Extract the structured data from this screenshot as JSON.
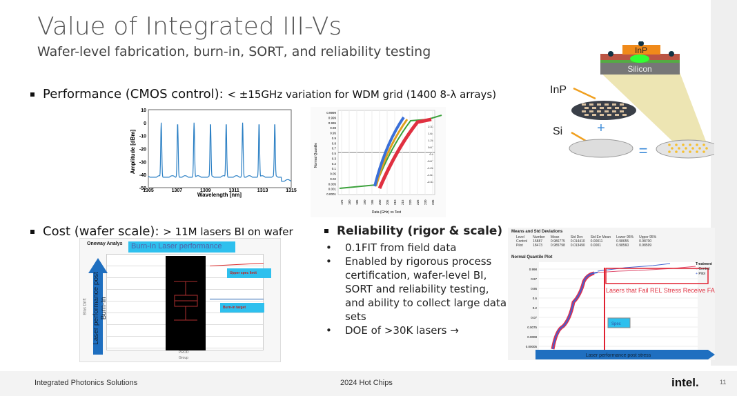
{
  "title": "Value of Integrated III-Vs",
  "subtitle": "Wafer-level fabrication, burn-in, SORT, and reliability testing",
  "bullets": {
    "performance": {
      "label": "Performance (CMOS control):",
      "text": "< ±15GHz variation for WDM grid (1400 8-λ arrays)"
    },
    "cost": {
      "label": "Cost (wafer scale):",
      "text": "> 11M lasers BI on wafer"
    }
  },
  "reliability": {
    "heading": "Reliability (rigor & scale)",
    "items": [
      "0.1FIT from field data",
      "Enabled by rigorous process certification, wafer-level BI, SORT and reliability testing, and ability to collect large data sets",
      "DOE of >30K lasers →"
    ]
  },
  "spectrum": {
    "ylabel": "Amplitude [dBm]",
    "xlabel": "Wavelength [nm]",
    "yticks": [
      "10",
      "0",
      "-10",
      "-20",
      "-30",
      "-40",
      "-50"
    ],
    "xticks": [
      "1305",
      "1307",
      "1309",
      "1311",
      "1313",
      "1315"
    ],
    "peaks_nm": [
      1305.9,
      1307.05,
      1308.2,
      1309.35,
      1310.45,
      1311.6,
      1312.75,
      1313.85
    ],
    "color": "#2a7fc4"
  },
  "quantile": {
    "ylabel": "Normal Quantile",
    "xlabel": "Data (GHz) vs Test",
    "yticks": [
      "0.9999",
      "0.999",
      "0.995",
      "0.98",
      "0.95",
      "0.9",
      "0.8",
      "0.7",
      "0.5",
      "0.3",
      "0.2",
      "0.1",
      "0.05",
      "0.02",
      "0.005",
      "0.001",
      "0.0001"
    ],
    "rticks": [
      "2.33",
      "1.64",
      "1.28",
      "0.67",
      "0.0",
      "-0.67",
      "-1.28",
      "-1.64",
      "-2.33"
    ],
    "xticks": [
      "175",
      "180",
      "185",
      "190",
      "195",
      "200",
      "205",
      "210",
      "215",
      "220",
      "225",
      "230",
      "235"
    ]
  },
  "burnin": {
    "header": "Oneway Analys",
    "title": "Burn-In Laser performance",
    "arrow_label": "Laser performance post Burn-In",
    "axis_label": "Bias Drift",
    "upper": "Upper spec limit",
    "target": "Burn-in target",
    "group": "PROD",
    "xlabel": "Group"
  },
  "rel_chart": {
    "means_title": "Means and Std Deviations",
    "columns": [
      "Level",
      "Number",
      "Mean",
      "Std Dev",
      "Std Err Mean",
      "Lower 95%",
      "Upper 95%"
    ],
    "rows": [
      [
        "Control",
        "15887",
        "0.986775",
        "0.014410",
        "0.00011",
        "0.98655",
        "0.98700"
      ],
      [
        "Pilot",
        "18473",
        "0.985798",
        "0.013490",
        "0.0001",
        "0.98560",
        "0.98599"
      ]
    ],
    "plot_title": "Normal Quantile Plot",
    "annotation": "Lasers that Fail REL Stress Receive FA Validation",
    "spec": "Spec",
    "arrow_label": "Laser performance post stress",
    "legend_title": "Treatment",
    "legend": [
      "Control",
      "Pilot"
    ],
    "yticks": [
      "0.998",
      "0.97",
      "0.86",
      "0.6",
      "0.2",
      "0.07",
      "0.0075",
      "0.0008",
      "0.00005"
    ]
  },
  "diagram": {
    "inp": "InP",
    "silicon": "Silicon",
    "inp_label": "InP",
    "si_label": "Si",
    "plus": "+",
    "equals": "="
  },
  "footer": {
    "left": "Integrated Photonics Solutions",
    "center": "2024 Hot Chips",
    "logo": "intel.",
    "page": "11"
  }
}
